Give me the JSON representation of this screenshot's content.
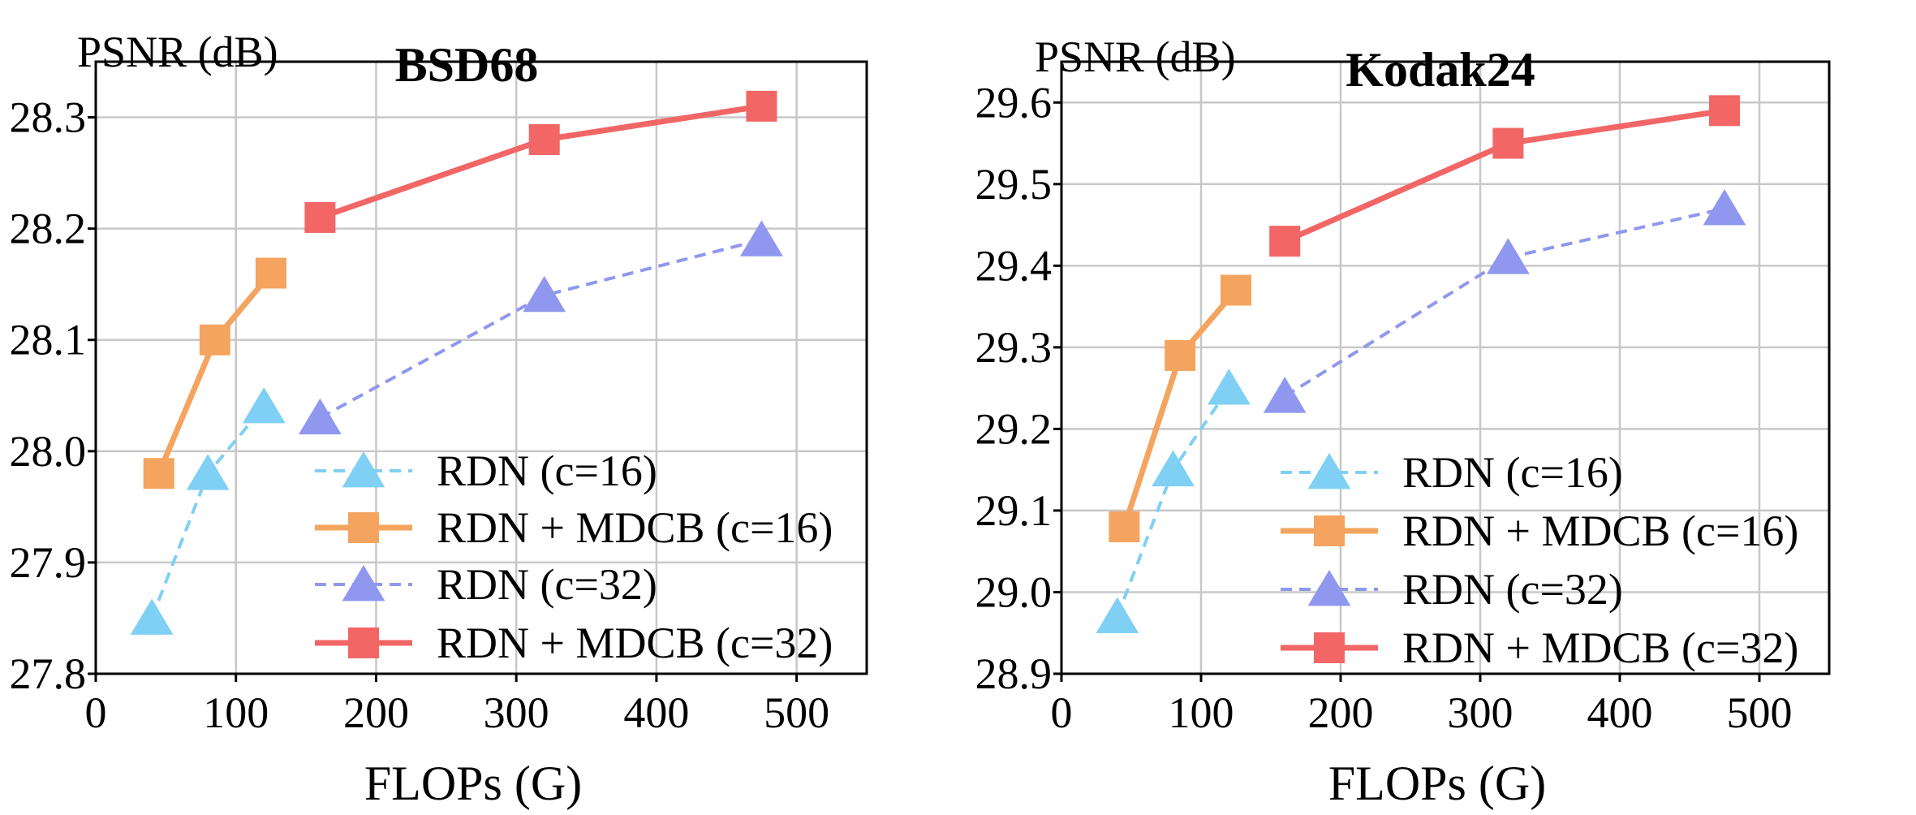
{
  "chart_data": [
    {
      "type": "line",
      "title": "BSD68",
      "ylabel": "PSNR (dB)",
      "xlabel": "FLOPs (G)",
      "xlim": [
        0,
        550
      ],
      "ylim": [
        27.8,
        28.35
      ],
      "xticks": [
        0,
        100,
        200,
        300,
        400,
        500
      ],
      "yticks": [
        27.8,
        27.9,
        28.0,
        28.1,
        28.2,
        28.3
      ],
      "ytick_labels": [
        "27.8",
        "27.9",
        "28.0",
        "28.1",
        "28.2",
        "28.3"
      ],
      "legend_position": "bottom-right",
      "series": [
        {
          "name": "RDN (c=16)",
          "color": "#7fd0f4",
          "style": "dashed",
          "marker": "triangle",
          "x": [
            40,
            80,
            120
          ],
          "y": [
            27.85,
            27.98,
            28.04
          ]
        },
        {
          "name": "RDN + MDCB (c=16)",
          "color": "#f4a45f",
          "style": "solid",
          "marker": "square",
          "x": [
            45,
            85,
            125
          ],
          "y": [
            27.98,
            28.1,
            28.16
          ]
        },
        {
          "name": "RDN (c=32)",
          "color": "#8f98ee",
          "style": "dashed",
          "marker": "triangle",
          "x": [
            160,
            320,
            475
          ],
          "y": [
            28.03,
            28.14,
            28.19
          ]
        },
        {
          "name": "RDN + MDCB (c=32)",
          "color": "#f26666",
          "style": "solid",
          "marker": "square",
          "x": [
            160,
            320,
            475
          ],
          "y": [
            28.21,
            28.28,
            28.31
          ]
        }
      ]
    },
    {
      "type": "line",
      "title": "Kodak24",
      "ylabel": "PSNR (dB)",
      "xlabel": "FLOPs (G)",
      "xlim": [
        0,
        550
      ],
      "ylim": [
        28.9,
        29.65
      ],
      "xticks": [
        0,
        100,
        200,
        300,
        400,
        500
      ],
      "yticks": [
        28.9,
        29.0,
        29.1,
        29.2,
        29.3,
        29.4,
        29.5,
        29.6
      ],
      "ytick_labels": [
        "28.9",
        "29.0",
        "29.1",
        "29.2",
        "29.3",
        "29.4",
        "29.5",
        "29.6"
      ],
      "legend_position": "bottom-right",
      "series": [
        {
          "name": "RDN (c=16)",
          "color": "#7fd0f4",
          "style": "dashed",
          "marker": "triangle",
          "x": [
            40,
            80,
            120
          ],
          "y": [
            28.97,
            29.15,
            29.25
          ]
        },
        {
          "name": "RDN + MDCB (c=16)",
          "color": "#f4a45f",
          "style": "solid",
          "marker": "square",
          "x": [
            45,
            85,
            125
          ],
          "y": [
            29.08,
            29.29,
            29.37
          ]
        },
        {
          "name": "RDN (c=32)",
          "color": "#8f98ee",
          "style": "dashed",
          "marker": "triangle",
          "x": [
            160,
            320,
            475
          ],
          "y": [
            29.24,
            29.41,
            29.47
          ]
        },
        {
          "name": "RDN + MDCB (c=32)",
          "color": "#f26666",
          "style": "solid",
          "marker": "square",
          "x": [
            160,
            320,
            475
          ],
          "y": [
            29.43,
            29.55,
            29.59
          ]
        }
      ]
    }
  ]
}
